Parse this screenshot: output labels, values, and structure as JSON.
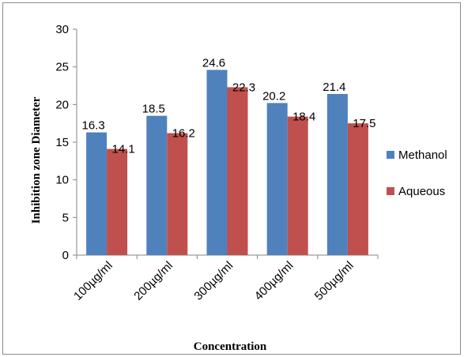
{
  "chart_data": {
    "type": "bar",
    "categories": [
      "100µg/ml",
      "200µg/ml",
      "300µg/ml",
      "400µg/ml",
      "500µg/ml"
    ],
    "series": [
      {
        "name": "Methanol",
        "values": [
          16.3,
          18.5,
          24.6,
          20.2,
          21.4
        ],
        "color": "#4f81bd"
      },
      {
        "name": "Aqueous",
        "values": [
          14.1,
          16.2,
          22.3,
          18.4,
          17.5
        ],
        "color": "#c0504d"
      }
    ],
    "xlabel": "Concentration",
    "ylabel": "Inhibition zone  Diameter",
    "ylim": [
      0,
      30
    ],
    "yticks": [
      0,
      5,
      10,
      15,
      20,
      25,
      30
    ],
    "data_labels": true,
    "grid": false,
    "legend": "right"
  }
}
